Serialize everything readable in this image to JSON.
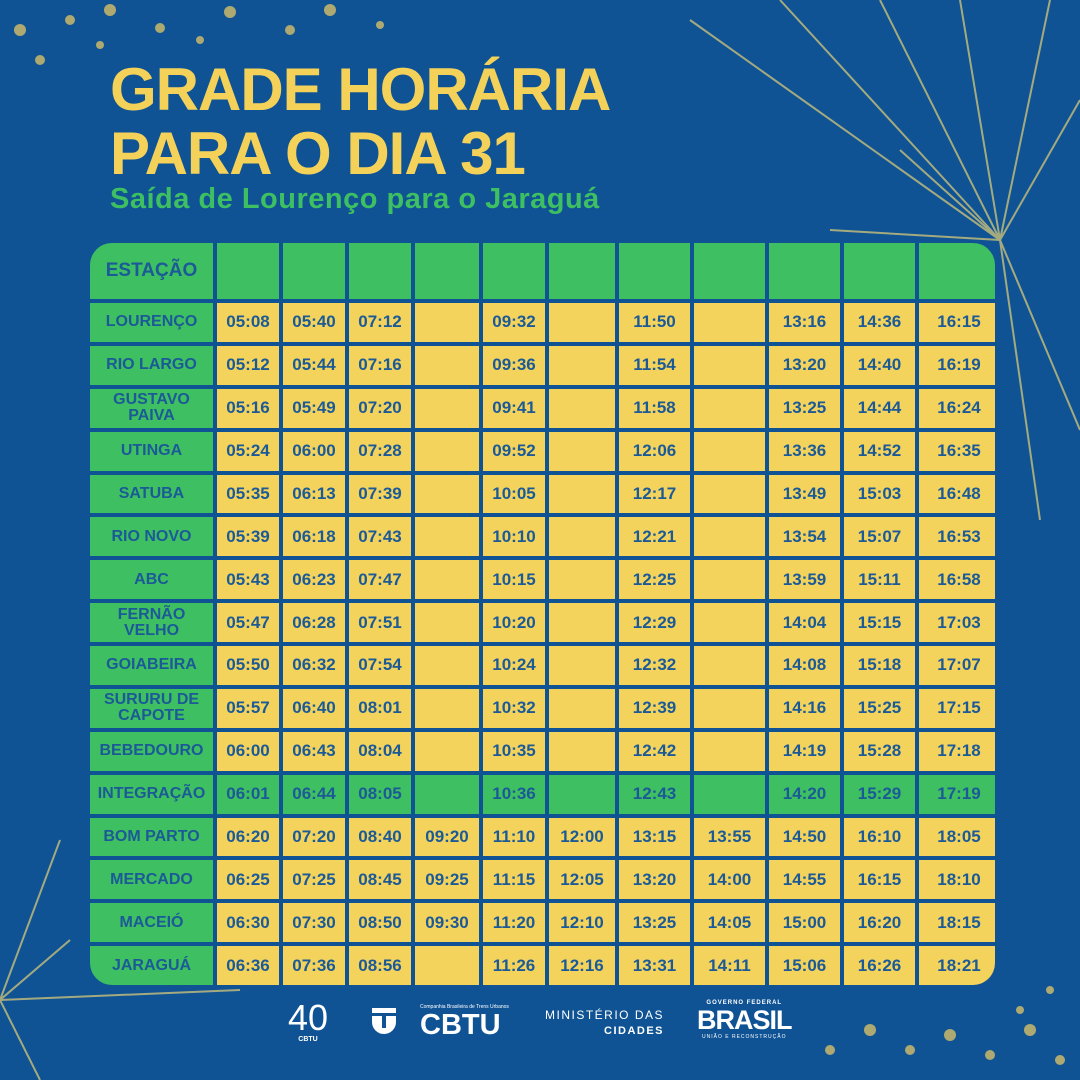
{
  "header": {
    "title_line1": "GRADE HORÁRIA",
    "title_line2": "PARA O DIA 31",
    "subtitle": "Saída de Lourenço para o Jaraguá"
  },
  "table": {
    "header_label": "ESTAÇÃO",
    "column_count": 11,
    "rows": [
      {
        "station": "LOURENÇO",
        "times": [
          "05:08",
          "05:40",
          "07:12",
          "",
          "09:32",
          "",
          "11:50",
          "",
          "13:16",
          "14:36",
          "16:15"
        ]
      },
      {
        "station": "RIO LARGO",
        "times": [
          "05:12",
          "05:44",
          "07:16",
          "",
          "09:36",
          "",
          "11:54",
          "",
          "13:20",
          "14:40",
          "16:19"
        ]
      },
      {
        "station": "GUSTAVO PAIVA",
        "times": [
          "05:16",
          "05:49",
          "07:20",
          "",
          "09:41",
          "",
          "11:58",
          "",
          "13:25",
          "14:44",
          "16:24"
        ]
      },
      {
        "station": "UTINGA",
        "times": [
          "05:24",
          "06:00",
          "07:28",
          "",
          "09:52",
          "",
          "12:06",
          "",
          "13:36",
          "14:52",
          "16:35"
        ]
      },
      {
        "station": "SATUBA",
        "times": [
          "05:35",
          "06:13",
          "07:39",
          "",
          "10:05",
          "",
          "12:17",
          "",
          "13:49",
          "15:03",
          "16:48"
        ]
      },
      {
        "station": "RIO NOVO",
        "times": [
          "05:39",
          "06:18",
          "07:43",
          "",
          "10:10",
          "",
          "12:21",
          "",
          "13:54",
          "15:07",
          "16:53"
        ]
      },
      {
        "station": "ABC",
        "times": [
          "05:43",
          "06:23",
          "07:47",
          "",
          "10:15",
          "",
          "12:25",
          "",
          "13:59",
          "15:11",
          "16:58"
        ]
      },
      {
        "station": "FERNÃO VELHO",
        "times": [
          "05:47",
          "06:28",
          "07:51",
          "",
          "10:20",
          "",
          "12:29",
          "",
          "14:04",
          "15:15",
          "17:03"
        ]
      },
      {
        "station": "GOIABEIRA",
        "times": [
          "05:50",
          "06:32",
          "07:54",
          "",
          "10:24",
          "",
          "12:32",
          "",
          "14:08",
          "15:18",
          "17:07"
        ]
      },
      {
        "station": "SURURU DE CAPOTE",
        "times": [
          "05:57",
          "06:40",
          "08:01",
          "",
          "10:32",
          "",
          "12:39",
          "",
          "14:16",
          "15:25",
          "17:15"
        ]
      },
      {
        "station": "BEBEDOURO",
        "times": [
          "06:00",
          "06:43",
          "08:04",
          "",
          "10:35",
          "",
          "12:42",
          "",
          "14:19",
          "15:28",
          "17:18"
        ]
      },
      {
        "station": "INTEGRAÇÃO",
        "highlight": true,
        "times": [
          "06:01",
          "06:44",
          "08:05",
          "",
          "10:36",
          "",
          "12:43",
          "",
          "14:20",
          "15:29",
          "17:19"
        ]
      },
      {
        "station": "BOM PARTO",
        "times": [
          "06:20",
          "07:20",
          "08:40",
          "09:20",
          "11:10",
          "12:00",
          "13:15",
          "13:55",
          "14:50",
          "16:10",
          "18:05"
        ]
      },
      {
        "station": "MERCADO",
        "times": [
          "06:25",
          "07:25",
          "08:45",
          "09:25",
          "11:15",
          "12:05",
          "13:20",
          "14:00",
          "14:55",
          "16:15",
          "18:10"
        ]
      },
      {
        "station": "MACEIÓ",
        "times": [
          "06:30",
          "07:30",
          "08:50",
          "09:30",
          "11:20",
          "12:10",
          "13:25",
          "14:05",
          "15:00",
          "16:20",
          "18:15"
        ]
      },
      {
        "station": "JARAGUÁ",
        "times": [
          "06:36",
          "07:36",
          "08:56",
          "",
          "11:26",
          "12:16",
          "13:31",
          "14:11",
          "15:06",
          "16:26",
          "18:21"
        ]
      }
    ]
  },
  "footer": {
    "cbtu40": {
      "number": "40",
      "label": "CBTU"
    },
    "cbtu": {
      "small": "Companhia Brasileira de Trens Urbanos",
      "name": "CBTU"
    },
    "ministerio": {
      "line1": "MINISTÉRIO DAS",
      "line2": "CIDADES"
    },
    "governo": {
      "top": "GOVERNO FEDERAL",
      "name": "BRASIL",
      "bottom": "UNIÃO E RECONSTRUÇÃO"
    }
  },
  "colors": {
    "background": "#0f5394",
    "yellow": "#f3d35c",
    "green": "#3dbf62",
    "text": "#1b5a97"
  }
}
